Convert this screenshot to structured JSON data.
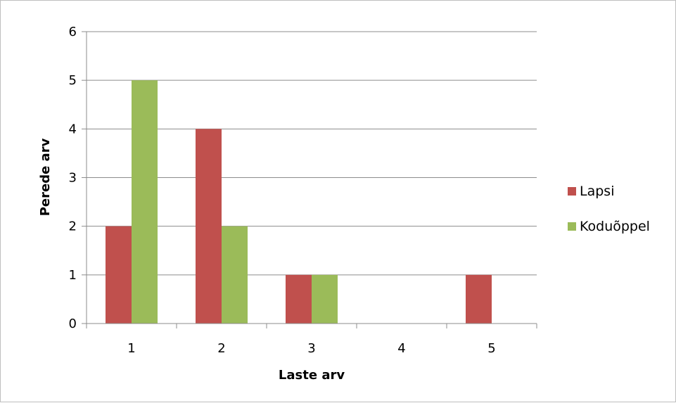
{
  "chart_data": {
    "type": "bar",
    "categories": [
      "1",
      "2",
      "3",
      "4",
      "5"
    ],
    "series": [
      {
        "name": "Lapsi",
        "values": [
          2,
          4,
          1,
          0,
          1
        ],
        "color": "#C0504D"
      },
      {
        "name": "Koduõppel",
        "values": [
          5,
          2,
          1,
          0,
          0
        ],
        "color": "#9BBB59"
      }
    ],
    "xlabel": "Laste arv",
    "ylabel": "Perede arv",
    "ylim": [
      0,
      6
    ],
    "yticks": [
      0,
      1,
      2,
      3,
      4,
      5,
      6
    ],
    "grid": true,
    "legend": "right"
  }
}
